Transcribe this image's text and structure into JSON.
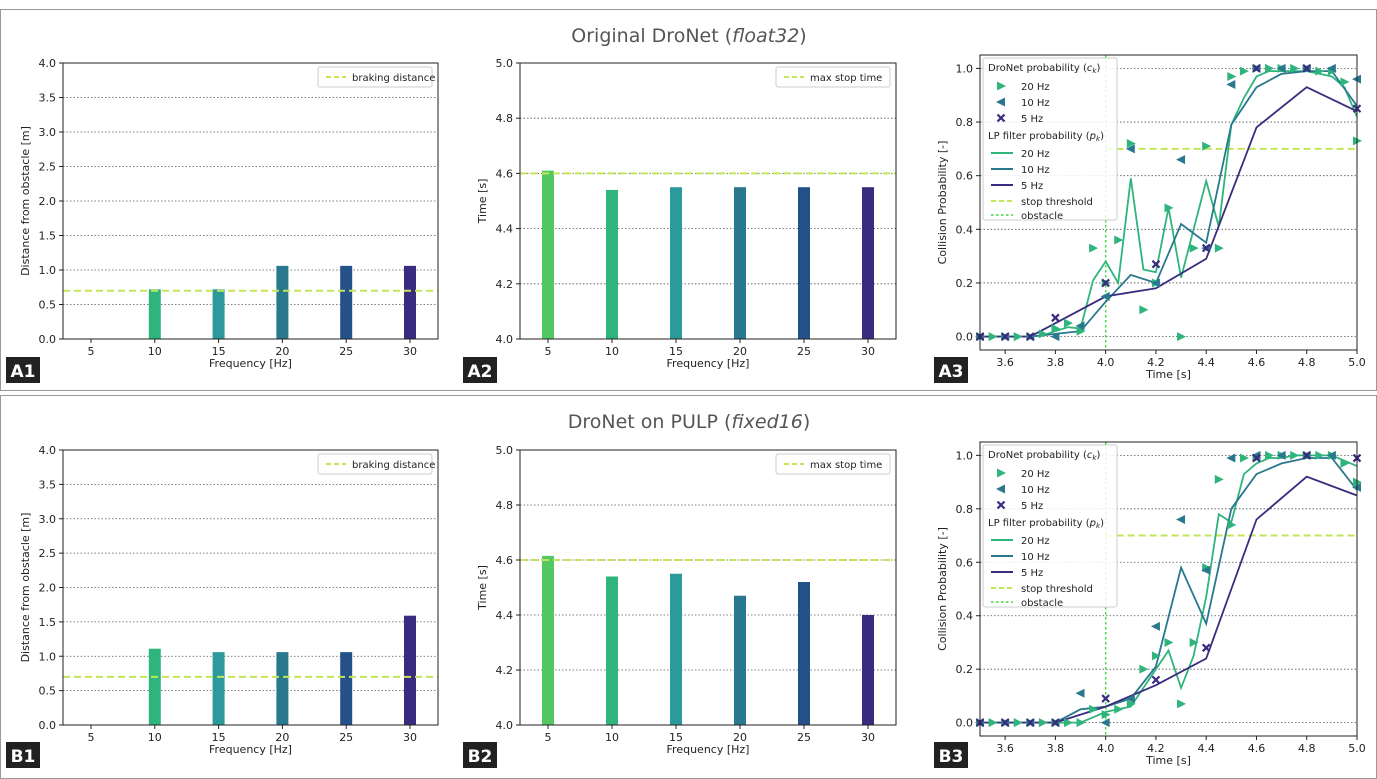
{
  "rows": [
    {
      "title_main": "Original DroNet (",
      "title_italic": "float32",
      "title_end": ")"
    },
    {
      "title_main": "DroNet on PULP (",
      "title_italic": "fixed16",
      "title_end": ")"
    }
  ],
  "colors": {
    "5": "#52c862",
    "10": "#2fb47c",
    "15": "#2c9a9a",
    "20": "#29788e",
    "25": "#24518a",
    "30": "#3b2b7e",
    "dashed": "#c2e65a",
    "obstacle": "#3dd63d"
  },
  "chart_data": [
    {
      "type": "bar",
      "label": "A1",
      "categories": [
        "5",
        "10",
        "15",
        "20",
        "25",
        "30"
      ],
      "values": [
        0,
        0.72,
        0.72,
        1.06,
        1.06,
        1.06
      ],
      "hline": 0.7,
      "hline_label": "braking distance",
      "ylim": [
        0,
        4
      ],
      "yticks": [
        0.0,
        0.5,
        1.0,
        1.5,
        2.0,
        2.5,
        3.0,
        3.5,
        4.0
      ],
      "xlabel": "Frequency [Hz]",
      "ylabel": "Distance from obstacle [m]",
      "grid": "y",
      "legend": "top-right"
    },
    {
      "type": "bar",
      "label": "A2",
      "categories": [
        "5",
        "10",
        "15",
        "20",
        "25",
        "30"
      ],
      "values": [
        4.61,
        4.54,
        4.55,
        4.55,
        4.55,
        4.55
      ],
      "hline": 4.6,
      "hline_label": "max stop time",
      "ylim": [
        4.0,
        5.0
      ],
      "yticks": [
        4.0,
        4.2,
        4.4,
        4.6,
        4.8,
        5.0
      ],
      "xlabel": "Frequency [Hz]",
      "ylabel": "Time [s]",
      "grid": "y",
      "legend": "top-right"
    },
    {
      "type": "line",
      "label": "A3",
      "xlim": [
        3.5,
        5.0
      ],
      "ylim": [
        -0.05,
        1.05
      ],
      "xticks": [
        3.6,
        3.8,
        4.0,
        4.2,
        4.4,
        4.6,
        4.8,
        5.0
      ],
      "yticks": [
        0.0,
        0.2,
        0.4,
        0.6,
        0.8,
        1.0
      ],
      "xlabel": "Time [s]",
      "ylabel": "Collision Probability [-]",
      "threshold": 0.7,
      "obstacle": 4.0,
      "legend": {
        "head1": "DroNet probability (",
        "head1_sym": "c",
        "head1_sub": "k",
        "hz20": "20 Hz",
        "hz10": "10 Hz",
        "hz5": "5 Hz",
        "head2": "LP filter probability (",
        "head2_sym": "p",
        "head2_sub": "k",
        "stop": "stop threshold",
        "obst": "obstacle"
      },
      "series": [
        {
          "name": "20 Hz",
          "color": "#2fb47c",
          "x": [
            3.5,
            3.55,
            3.6,
            3.65,
            3.7,
            3.75,
            3.8,
            3.85,
            3.9,
            3.95,
            4.0,
            4.05,
            4.1,
            4.15,
            4.2,
            4.25,
            4.3,
            4.35,
            4.4,
            4.45,
            4.5,
            4.55,
            4.6,
            4.65,
            4.7,
            4.75,
            4.8,
            4.85,
            4.9,
            4.95,
            5.0
          ],
          "pts": [
            0.0,
            0.0,
            0.0,
            0.0,
            0.0,
            0.01,
            0.03,
            0.05,
            0.02,
            0.33,
            0.2,
            0.36,
            0.72,
            0.1,
            0.2,
            0.48,
            0.0,
            0.33,
            0.71,
            0.33,
            0.97,
            0.99,
            1.0,
            1.0,
            1.0,
            1.0,
            1.0,
            0.99,
            0.99,
            0.95,
            0.73
          ],
          "filt": [
            0.0,
            0.0,
            0.0,
            0.0,
            0.0,
            0.005,
            0.02,
            0.035,
            0.03,
            0.21,
            0.28,
            0.2,
            0.59,
            0.25,
            0.24,
            0.48,
            0.22,
            0.4,
            0.58,
            0.41,
            0.79,
            0.89,
            0.97,
            0.99,
            0.99,
            0.99,
            0.99,
            0.98,
            0.97,
            0.93,
            0.82
          ]
        },
        {
          "name": "10 Hz",
          "color": "#29788e",
          "x": [
            3.5,
            3.6,
            3.7,
            3.8,
            3.9,
            4.0,
            4.1,
            4.2,
            4.3,
            4.4,
            4.5,
            4.6,
            4.7,
            4.8,
            4.9,
            5.0
          ],
          "pts": [
            0.0,
            0.0,
            0.0,
            0.0,
            0.04,
            0.15,
            0.7,
            0.2,
            0.66,
            0.33,
            0.94,
            1.0,
            1.0,
            1.0,
            1.0,
            0.96
          ],
          "filt": [
            0.0,
            0.0,
            0.0,
            0.01,
            0.02,
            0.13,
            0.23,
            0.2,
            0.42,
            0.35,
            0.79,
            0.93,
            0.98,
            0.99,
            0.99,
            0.86
          ]
        },
        {
          "name": "5 Hz",
          "color": "#3b2b7e",
          "x": [
            3.5,
            3.6,
            3.7,
            3.8,
            4.0,
            4.2,
            4.4,
            4.6,
            4.8,
            5.0
          ],
          "pts": [
            0.0,
            0.0,
            0.0,
            0.07,
            0.2,
            0.27,
            0.33,
            1.0,
            1.0,
            0.85
          ],
          "filt": [
            0.0,
            0.0,
            0.0,
            0.05,
            0.15,
            0.18,
            0.29,
            0.78,
            0.93,
            0.84
          ]
        }
      ]
    },
    {
      "type": "bar",
      "label": "B1",
      "categories": [
        "5",
        "10",
        "15",
        "20",
        "25",
        "30"
      ],
      "values": [
        0,
        1.11,
        1.06,
        1.06,
        1.06,
        1.59
      ],
      "hline": 0.7,
      "hline_label": "braking distance",
      "ylim": [
        0,
        4
      ],
      "yticks": [
        0.0,
        0.5,
        1.0,
        1.5,
        2.0,
        2.5,
        3.0,
        3.5,
        4.0
      ],
      "xlabel": "Frequency [Hz]",
      "ylabel": "Distance from obstacle [m]",
      "grid": "y",
      "legend": "top-right"
    },
    {
      "type": "bar",
      "label": "B2",
      "categories": [
        "5",
        "10",
        "15",
        "20",
        "25",
        "30"
      ],
      "values": [
        4.615,
        4.54,
        4.55,
        4.47,
        4.52,
        4.4
      ],
      "hline": 4.6,
      "hline_label": "max stop time",
      "ylim": [
        4.0,
        5.0
      ],
      "yticks": [
        4.0,
        4.2,
        4.4,
        4.6,
        4.8,
        5.0
      ],
      "xlabel": "Frequency [Hz]",
      "ylabel": "Time [s]",
      "grid": "y",
      "legend": "top-right"
    },
    {
      "type": "line",
      "label": "B3",
      "xlim": [
        3.5,
        5.0
      ],
      "ylim": [
        -0.05,
        1.05
      ],
      "xticks": [
        3.6,
        3.8,
        4.0,
        4.2,
        4.4,
        4.6,
        4.8,
        5.0
      ],
      "yticks": [
        0.0,
        0.2,
        0.4,
        0.6,
        0.8,
        1.0
      ],
      "xlabel": "Time [s]",
      "ylabel": "Collision Probability [-]",
      "threshold": 0.7,
      "obstacle": 4.0,
      "legend": {
        "head1": "DroNet probability (",
        "head1_sym": "c",
        "head1_sub": "k",
        "hz20": "20 Hz",
        "hz10": "10 Hz",
        "hz5": "5 Hz",
        "head2": "LP filter probability (",
        "head2_sym": "p",
        "head2_sub": "k",
        "stop": "stop threshold",
        "obst": "obstacle"
      },
      "series": [
        {
          "name": "20 Hz",
          "color": "#2fb47c",
          "x": [
            3.5,
            3.55,
            3.6,
            3.65,
            3.7,
            3.75,
            3.8,
            3.85,
            3.9,
            3.95,
            4.0,
            4.05,
            4.1,
            4.15,
            4.2,
            4.25,
            4.3,
            4.35,
            4.4,
            4.45,
            4.5,
            4.55,
            4.6,
            4.65,
            4.7,
            4.75,
            4.8,
            4.85,
            4.9,
            4.95,
            5.0
          ],
          "pts": [
            0.0,
            0.0,
            0.0,
            0.0,
            0.0,
            0.0,
            0.0,
            0.0,
            0.0,
            0.05,
            0.03,
            0.05,
            0.07,
            0.2,
            0.25,
            0.3,
            0.07,
            0.3,
            0.58,
            0.91,
            0.74,
            0.99,
            0.99,
            1.0,
            1.0,
            1.0,
            1.0,
            1.0,
            1.0,
            0.97,
            0.9
          ],
          "filt": [
            0.0,
            0.0,
            0.0,
            0.0,
            0.0,
            0.0,
            0.0,
            0.0,
            0.0,
            0.02,
            0.04,
            0.05,
            0.06,
            0.13,
            0.2,
            0.27,
            0.13,
            0.25,
            0.47,
            0.78,
            0.75,
            0.93,
            0.97,
            0.99,
            0.99,
            1.0,
            1.0,
            1.0,
            1.0,
            0.98,
            0.96
          ]
        },
        {
          "name": "10 Hz",
          "color": "#29788e",
          "x": [
            3.5,
            3.6,
            3.7,
            3.8,
            3.9,
            4.0,
            4.1,
            4.2,
            4.3,
            4.4,
            4.5,
            4.6,
            4.7,
            4.8,
            4.9,
            5.0
          ],
          "pts": [
            0.0,
            0.0,
            0.0,
            0.0,
            0.11,
            0.0,
            0.09,
            0.36,
            0.76,
            0.57,
            0.99,
            1.0,
            1.0,
            1.0,
            1.0,
            0.88
          ],
          "filt": [
            0.0,
            0.0,
            0.0,
            0.0,
            0.05,
            0.06,
            0.09,
            0.21,
            0.58,
            0.37,
            0.8,
            0.93,
            0.97,
            0.99,
            0.99,
            0.87
          ]
        },
        {
          "name": "5 Hz",
          "color": "#3b2b7e",
          "x": [
            3.5,
            3.6,
            3.7,
            3.8,
            4.0,
            4.2,
            4.4,
            4.6,
            4.8,
            5.0
          ],
          "pts": [
            0.0,
            0.0,
            0.0,
            0.0,
            0.09,
            0.16,
            0.28,
            0.99,
            1.0,
            0.99
          ],
          "filt": [
            0.0,
            0.0,
            0.0,
            0.0,
            0.06,
            0.14,
            0.24,
            0.76,
            0.92,
            0.85
          ]
        }
      ]
    }
  ]
}
